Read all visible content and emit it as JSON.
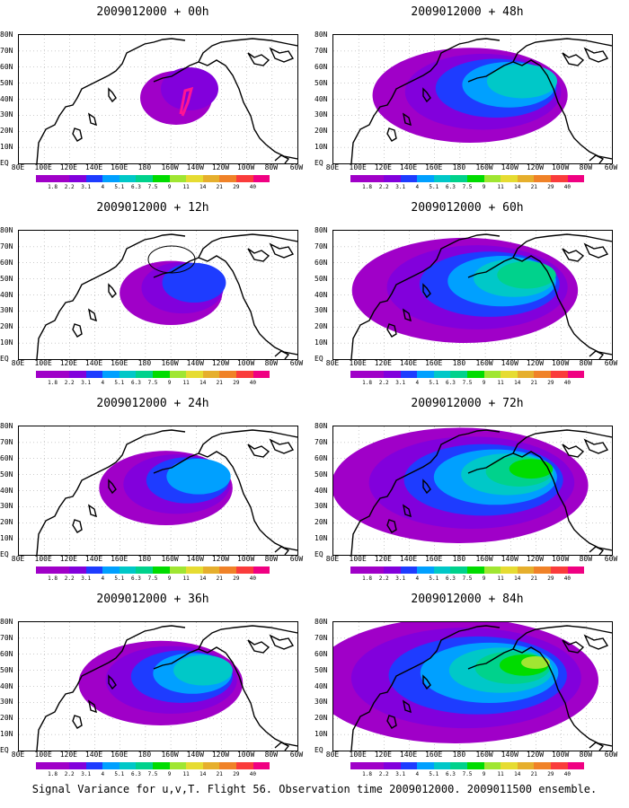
{
  "panels": [
    {
      "title": "2009012000 + 00h",
      "spread": 0
    },
    {
      "title": "2009012000 + 12h",
      "spread": 1
    },
    {
      "title": "2009012000 + 24h",
      "spread": 2
    },
    {
      "title": "2009012000 + 36h",
      "spread": 3
    },
    {
      "title": "2009012000 + 48h",
      "spread": 4
    },
    {
      "title": "2009012000 + 60h",
      "spread": 5
    },
    {
      "title": "2009012000 + 72h",
      "spread": 6
    },
    {
      "title": "2009012000 + 84h",
      "spread": 7
    }
  ],
  "lat_labels": [
    "80N",
    "70N",
    "60N",
    "50N",
    "40N",
    "30N",
    "20N",
    "10N",
    "EQ"
  ],
  "lon_labels": [
    "80E",
    "100E",
    "120E",
    "140E",
    "160E",
    "180",
    "160W",
    "140W",
    "120W",
    "100W",
    "80W",
    "60W"
  ],
  "colorbar": {
    "labels": [
      "1.8",
      "2.2",
      "3.1",
      "4",
      "5.1",
      "6.3",
      "7.5",
      "9",
      "11",
      "14",
      "21",
      "29",
      "40"
    ],
    "colors": [
      "#a000c8",
      "#8200dc",
      "#1e3cff",
      "#00a0ff",
      "#00c8c8",
      "#00d28c",
      "#00dc00",
      "#a0e632",
      "#e6dc32",
      "#e6af2d",
      "#f08228",
      "#fa3c3c",
      "#f00082"
    ]
  },
  "caption": "Signal Variance for u,v,T. Flight 56. Observation time 2009012000. 2009011500 ensemble."
}
